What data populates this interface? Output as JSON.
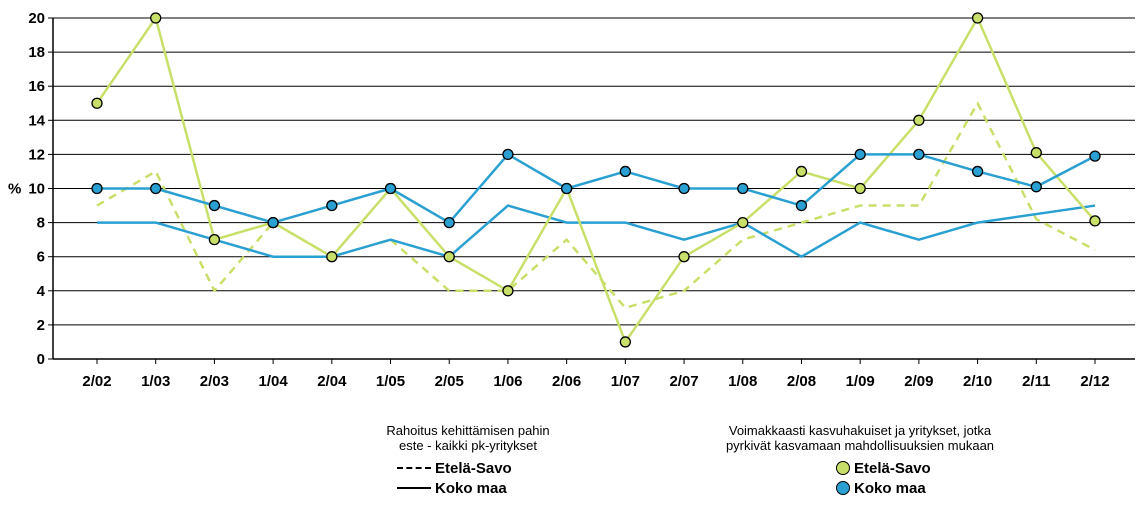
{
  "colors": {
    "etela_savo": "#c8e06a",
    "koko_maa": "#2aa0d2",
    "gridline": "#000000"
  },
  "legend": {
    "left": {
      "title_line1": "Rahoitus kehittämisen pahin",
      "title_line2": "este - kaikki pk-yritykset",
      "item1": "Etelä-Savo",
      "item2": "Koko maa"
    },
    "right": {
      "title_line1": "Voimakkaasti kasvuhakuiset ja yritykset, jotka",
      "title_line2": "pyrkivät kasvamaan mahdollisuuksien mukaan",
      "item1": "Etelä-Savo",
      "item2": "Koko maa"
    }
  },
  "chart_data": {
    "type": "line",
    "ylabel": "%",
    "xlabel": "",
    "ylim": [
      0,
      20
    ],
    "yticks": [
      0,
      2,
      4,
      6,
      8,
      10,
      12,
      14,
      16,
      18,
      20
    ],
    "grid": true,
    "categories": [
      "2/02",
      "1/03",
      "2/03",
      "1/04",
      "2/04",
      "1/05",
      "2/05",
      "1/06",
      "2/06",
      "1/07",
      "2/07",
      "1/08",
      "2/08",
      "1/09",
      "2/09",
      "2/10",
      "2/11",
      "2/12"
    ],
    "series": [
      {
        "name": "Etelä-Savo",
        "group": "Rahoitus kehittämisen pahin este - kaikki pk-yritykset",
        "style": "dashed",
        "color": "#c8e06a",
        "values": [
          9,
          11,
          4,
          8,
          6,
          7,
          4,
          4,
          7,
          3,
          4,
          7,
          8,
          9,
          9,
          15,
          8.2,
          6.4
        ]
      },
      {
        "name": "Koko maa",
        "group": "Rahoitus kehittämisen pahin este - kaikki pk-yritykset",
        "style": "solid",
        "color": "#2aa0d2",
        "values": [
          8,
          8,
          7,
          6,
          6,
          7,
          6,
          9,
          8,
          8,
          7,
          8,
          6,
          8,
          7,
          8,
          8.5,
          9
        ]
      },
      {
        "name": "Etelä-Savo",
        "group": "Voimakkaasti kasvuhakuiset ja yritykset, jotka pyrkivät kasvamaan mahdollisuuksien mukaan",
        "style": "solid-markers",
        "color": "#c8e06a",
        "values": [
          15,
          20,
          7,
          8,
          6,
          10,
          6,
          4,
          10,
          1,
          6,
          8,
          11,
          10,
          14,
          20,
          12.1,
          8.1
        ]
      },
      {
        "name": "Koko maa",
        "group": "Voimakkaasti kasvuhakuiset ja yritykset, jotka pyrkivät kasvamaan mahdollisuuksien mukaan",
        "style": "solid-markers",
        "color": "#2aa0d2",
        "values": [
          10,
          10,
          9,
          8,
          9,
          10,
          8,
          12,
          10,
          11,
          10,
          10,
          9,
          12,
          12,
          11,
          10.1,
          11.9
        ]
      }
    ]
  }
}
